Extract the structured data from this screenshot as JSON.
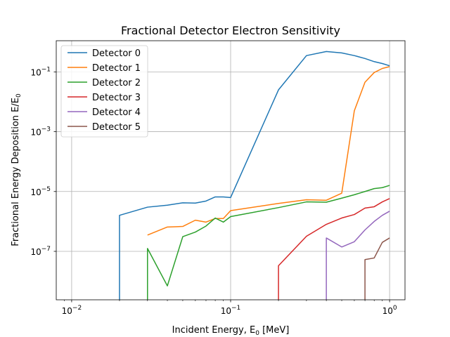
{
  "chart_data": {
    "type": "line",
    "title": "Fractional Detector Electron Sensitivity",
    "xlabel": "Incident Energy, E",
    "xlabel_sub": "0",
    "xlabel_unit": " [MeV]",
    "ylabel": "Fractional Energy Deposition E/E",
    "ylabel_sub": "0",
    "xscale": "log",
    "yscale": "log",
    "xlim": [
      0.008,
      1.25
    ],
    "ylim": [
      2.4e-09,
      1.1
    ],
    "grid": true,
    "legend_position": "upper left",
    "x_ticks": [
      {
        "value": 0.01,
        "base": "10",
        "exp": "−2"
      },
      {
        "value": 0.1,
        "base": "10",
        "exp": "−1"
      },
      {
        "value": 1,
        "base": "10",
        "exp": "0"
      }
    ],
    "y_ticks": [
      {
        "value": 1e-07,
        "base": "10",
        "exp": "−7"
      },
      {
        "value": 1e-05,
        "base": "10",
        "exp": "−5"
      },
      {
        "value": 0.001,
        "base": "10",
        "exp": "−3"
      },
      {
        "value": 0.1,
        "base": "10",
        "exp": "−1"
      }
    ],
    "series": [
      {
        "name": "Detector 0",
        "color": "#1f77b4",
        "points": [
          [
            0.02,
            2.4e-09
          ],
          [
            0.02,
            1.6e-06
          ],
          [
            0.03,
            3e-06
          ],
          [
            0.04,
            3.5e-06
          ],
          [
            0.05,
            4.2e-06
          ],
          [
            0.06,
            4.1e-06
          ],
          [
            0.07,
            4.8e-06
          ],
          [
            0.08,
            6.6e-06
          ],
          [
            0.09,
            6.6e-06
          ],
          [
            0.1,
            6.3e-06
          ],
          [
            0.2,
            0.025
          ],
          [
            0.3,
            0.35
          ],
          [
            0.4,
            0.48
          ],
          [
            0.5,
            0.43
          ],
          [
            0.6,
            0.35
          ],
          [
            0.7,
            0.28
          ],
          [
            0.8,
            0.22
          ],
          [
            0.9,
            0.19
          ],
          [
            1.0,
            0.16
          ]
        ]
      },
      {
        "name": "Detector 1",
        "color": "#ff7f0e",
        "points": [
          [
            0.03,
            3.5e-07
          ],
          [
            0.04,
            6.5e-07
          ],
          [
            0.05,
            6.8e-07
          ],
          [
            0.06,
            1.1e-06
          ],
          [
            0.07,
            9.5e-07
          ],
          [
            0.08,
            1.25e-06
          ],
          [
            0.09,
            1.25e-06
          ],
          [
            0.1,
            2.3e-06
          ],
          [
            0.2,
            4e-06
          ],
          [
            0.3,
            5.3e-06
          ],
          [
            0.4,
            5.1e-06
          ],
          [
            0.5,
            8.8e-06
          ],
          [
            0.6,
            0.005
          ],
          [
            0.7,
            0.045
          ],
          [
            0.8,
            0.095
          ],
          [
            0.9,
            0.13
          ],
          [
            1.0,
            0.15
          ]
        ]
      },
      {
        "name": "Detector 2",
        "color": "#2ca02c",
        "points": [
          [
            0.03,
            2.4e-09
          ],
          [
            0.03,
            1.25e-07
          ],
          [
            0.04,
            7e-09
          ],
          [
            0.05,
            3.1e-07
          ],
          [
            0.06,
            4.4e-07
          ],
          [
            0.07,
            7e-07
          ],
          [
            0.08,
            1.3e-06
          ],
          [
            0.09,
            9.5e-07
          ],
          [
            0.1,
            1.45e-06
          ],
          [
            0.2,
            2.9e-06
          ],
          [
            0.3,
            4.5e-06
          ],
          [
            0.4,
            4.4e-06
          ],
          [
            0.5,
            6e-06
          ],
          [
            0.6,
            7.8e-06
          ],
          [
            0.7,
            1e-05
          ],
          [
            0.8,
            1.25e-05
          ],
          [
            0.9,
            1.35e-05
          ],
          [
            1.0,
            1.6e-05
          ]
        ]
      },
      {
        "name": "Detector 3",
        "color": "#d62728",
        "points": [
          [
            0.2,
            2.4e-09
          ],
          [
            0.2,
            3.3e-08
          ],
          [
            0.3,
            3.2e-07
          ],
          [
            0.4,
            8e-07
          ],
          [
            0.5,
            1.3e-06
          ],
          [
            0.6,
            1.7e-06
          ],
          [
            0.7,
            2.8e-06
          ],
          [
            0.8,
            3.1e-06
          ],
          [
            0.9,
            4.5e-06
          ],
          [
            1.0,
            5.8e-06
          ]
        ]
      },
      {
        "name": "Detector 4",
        "color": "#9467bd",
        "points": [
          [
            0.4,
            2.4e-09
          ],
          [
            0.4,
            2.8e-07
          ],
          [
            0.5,
            1.4e-07
          ],
          [
            0.6,
            2.1e-07
          ],
          [
            0.7,
            5.2e-07
          ],
          [
            0.8,
            1e-06
          ],
          [
            0.9,
            1.6e-06
          ],
          [
            1.0,
            2.2e-06
          ]
        ]
      },
      {
        "name": "Detector 5",
        "color": "#8c564b",
        "points": [
          [
            0.7,
            2.4e-09
          ],
          [
            0.7,
            5.3e-08
          ],
          [
            0.8,
            6e-08
          ],
          [
            0.9,
            2e-07
          ],
          [
            1.0,
            2.8e-07
          ]
        ]
      }
    ]
  }
}
